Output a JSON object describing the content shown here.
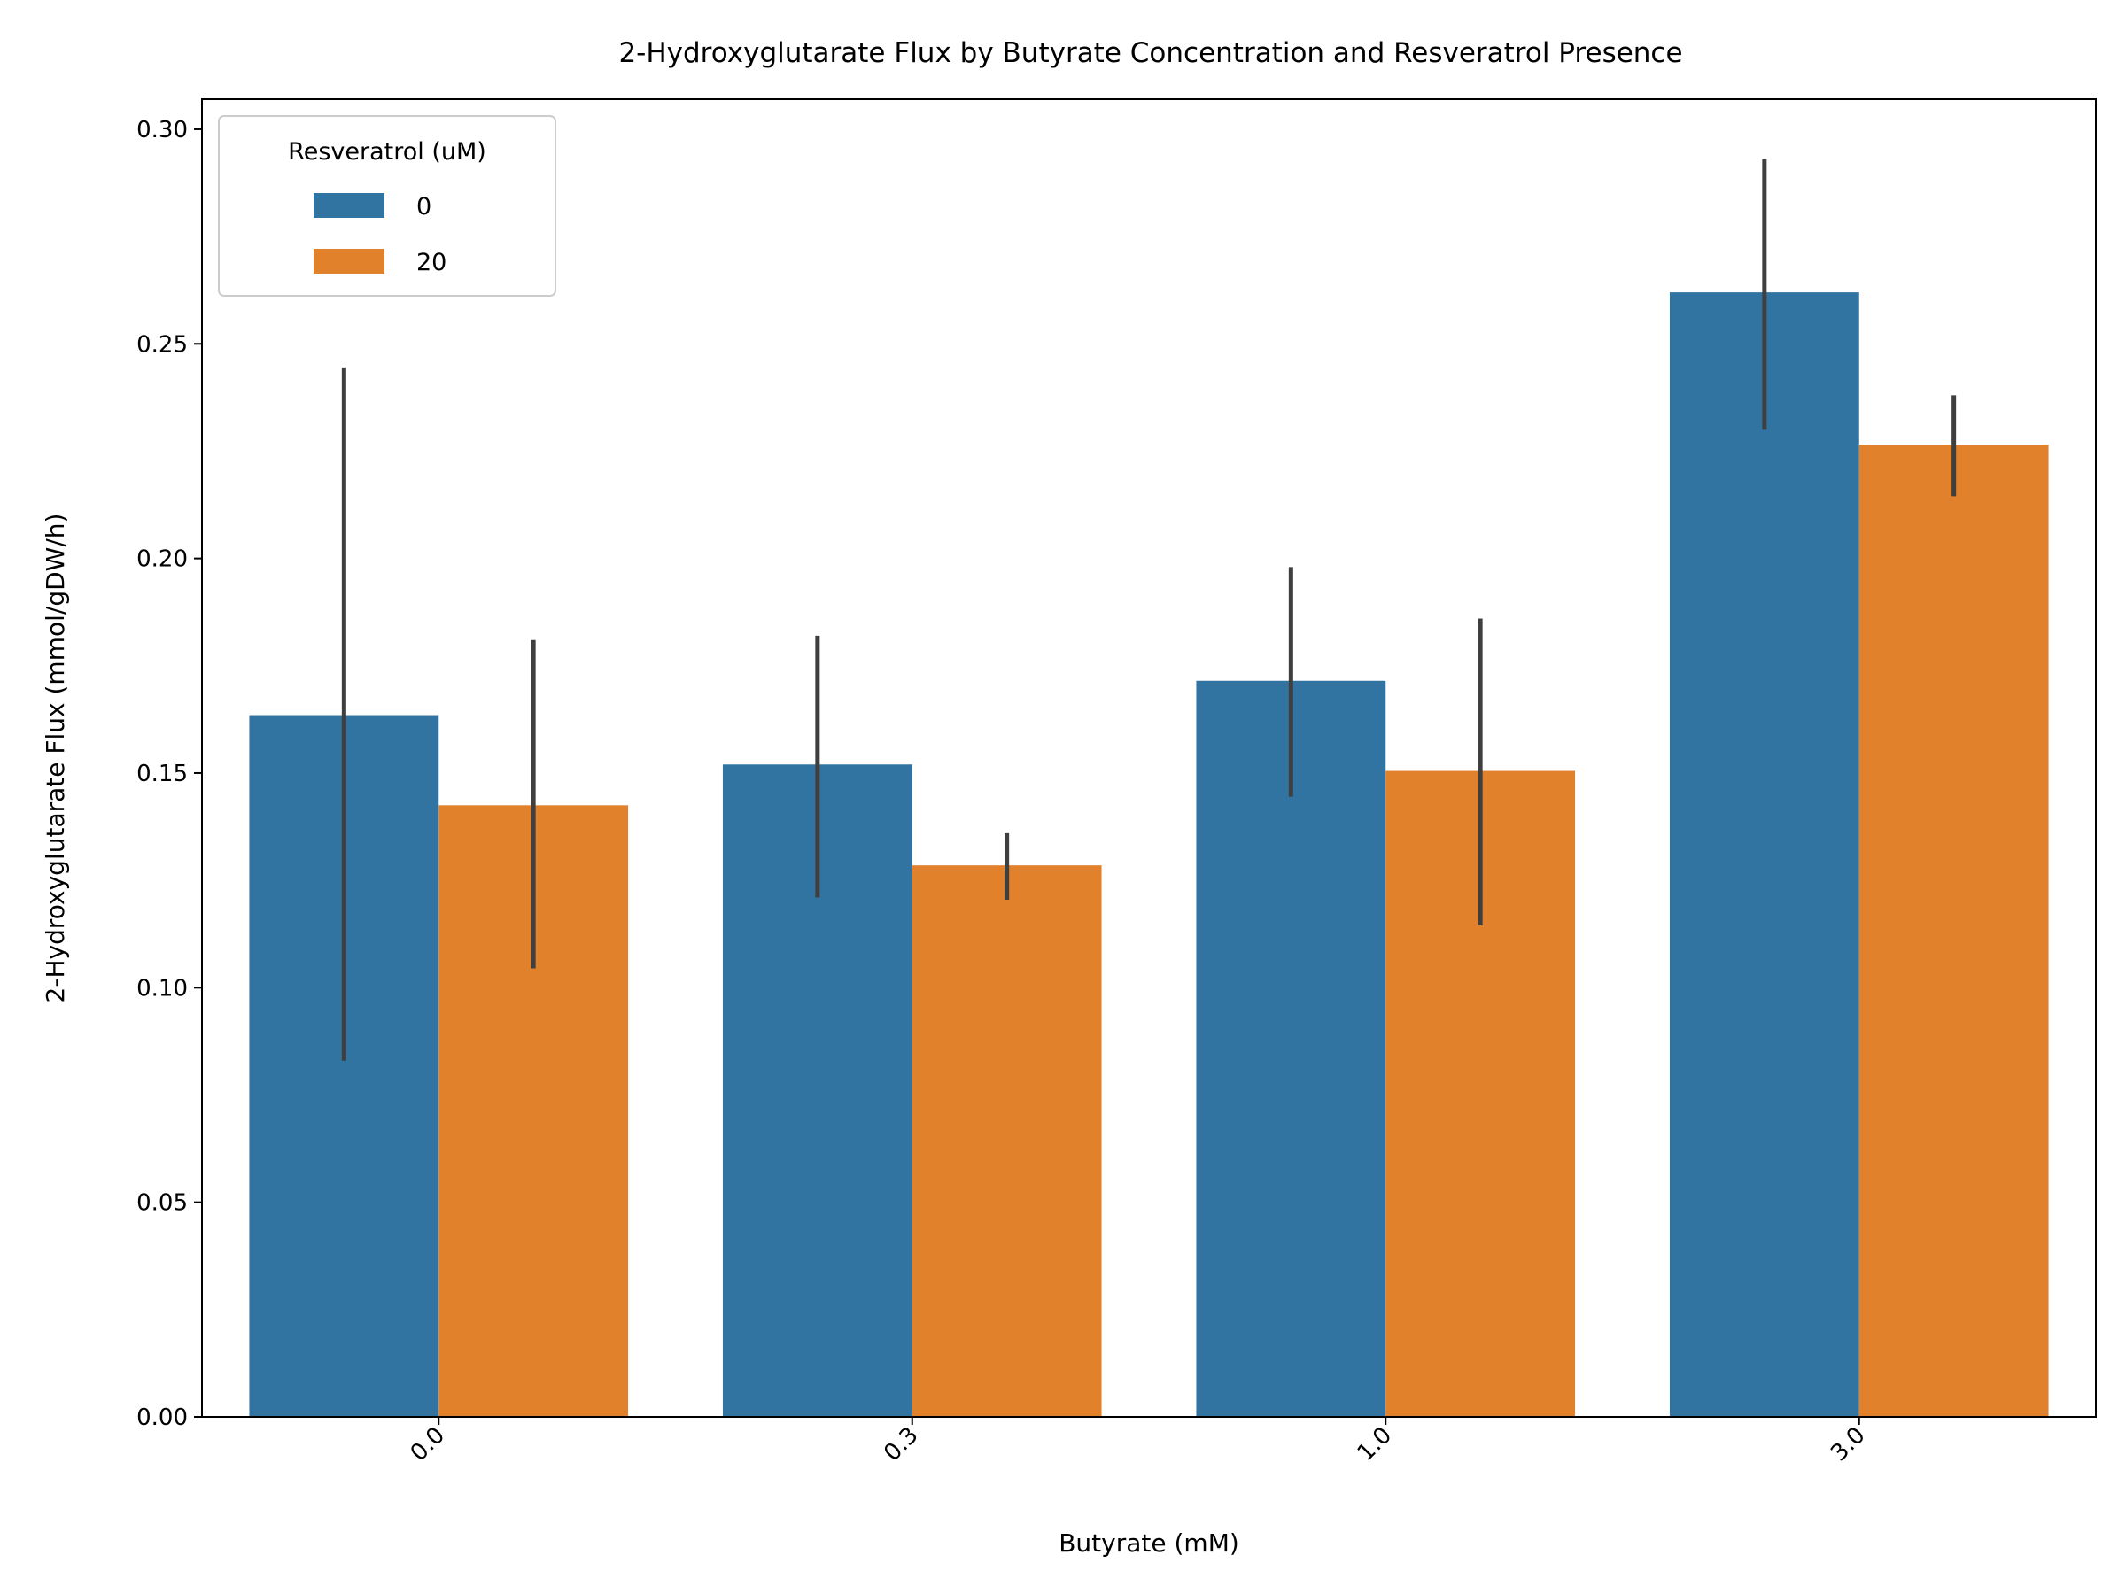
{
  "chart_data": {
    "type": "bar",
    "title": "2-Hydroxyglutarate Flux by Butyrate Concentration and Resveratrol Presence",
    "xlabel": "Butyrate (mM)",
    "ylabel": "2-Hydroxyglutarate Flux (mmol/gDW/h)",
    "categories": [
      "0.0",
      "0.3",
      "1.0",
      "3.0"
    ],
    "ylim": [
      0,
      0.307
    ],
    "yticks": [
      "0.00",
      "0.05",
      "0.10",
      "0.15",
      "0.20",
      "0.25",
      "0.30"
    ],
    "grid": false,
    "legend": {
      "title": "Resveratrol (uM)",
      "placement": "top-left"
    },
    "series": [
      {
        "name": "0",
        "color": "#3274a1",
        "values": [
          0.1635,
          0.152,
          0.1715,
          0.262
        ],
        "error_low": [
          0.083,
          0.121,
          0.1445,
          0.23
        ],
        "error_high": [
          0.2445,
          0.182,
          0.198,
          0.293
        ]
      },
      {
        "name": "20",
        "color": "#e1812c",
        "values": [
          0.1425,
          0.1285,
          0.1505,
          0.2265
        ],
        "error_low": [
          0.1045,
          0.1205,
          0.1145,
          0.2145
        ],
        "error_high": [
          0.181,
          0.136,
          0.186,
          0.238
        ]
      }
    ],
    "error_bar_color": "#3f3f3f"
  }
}
